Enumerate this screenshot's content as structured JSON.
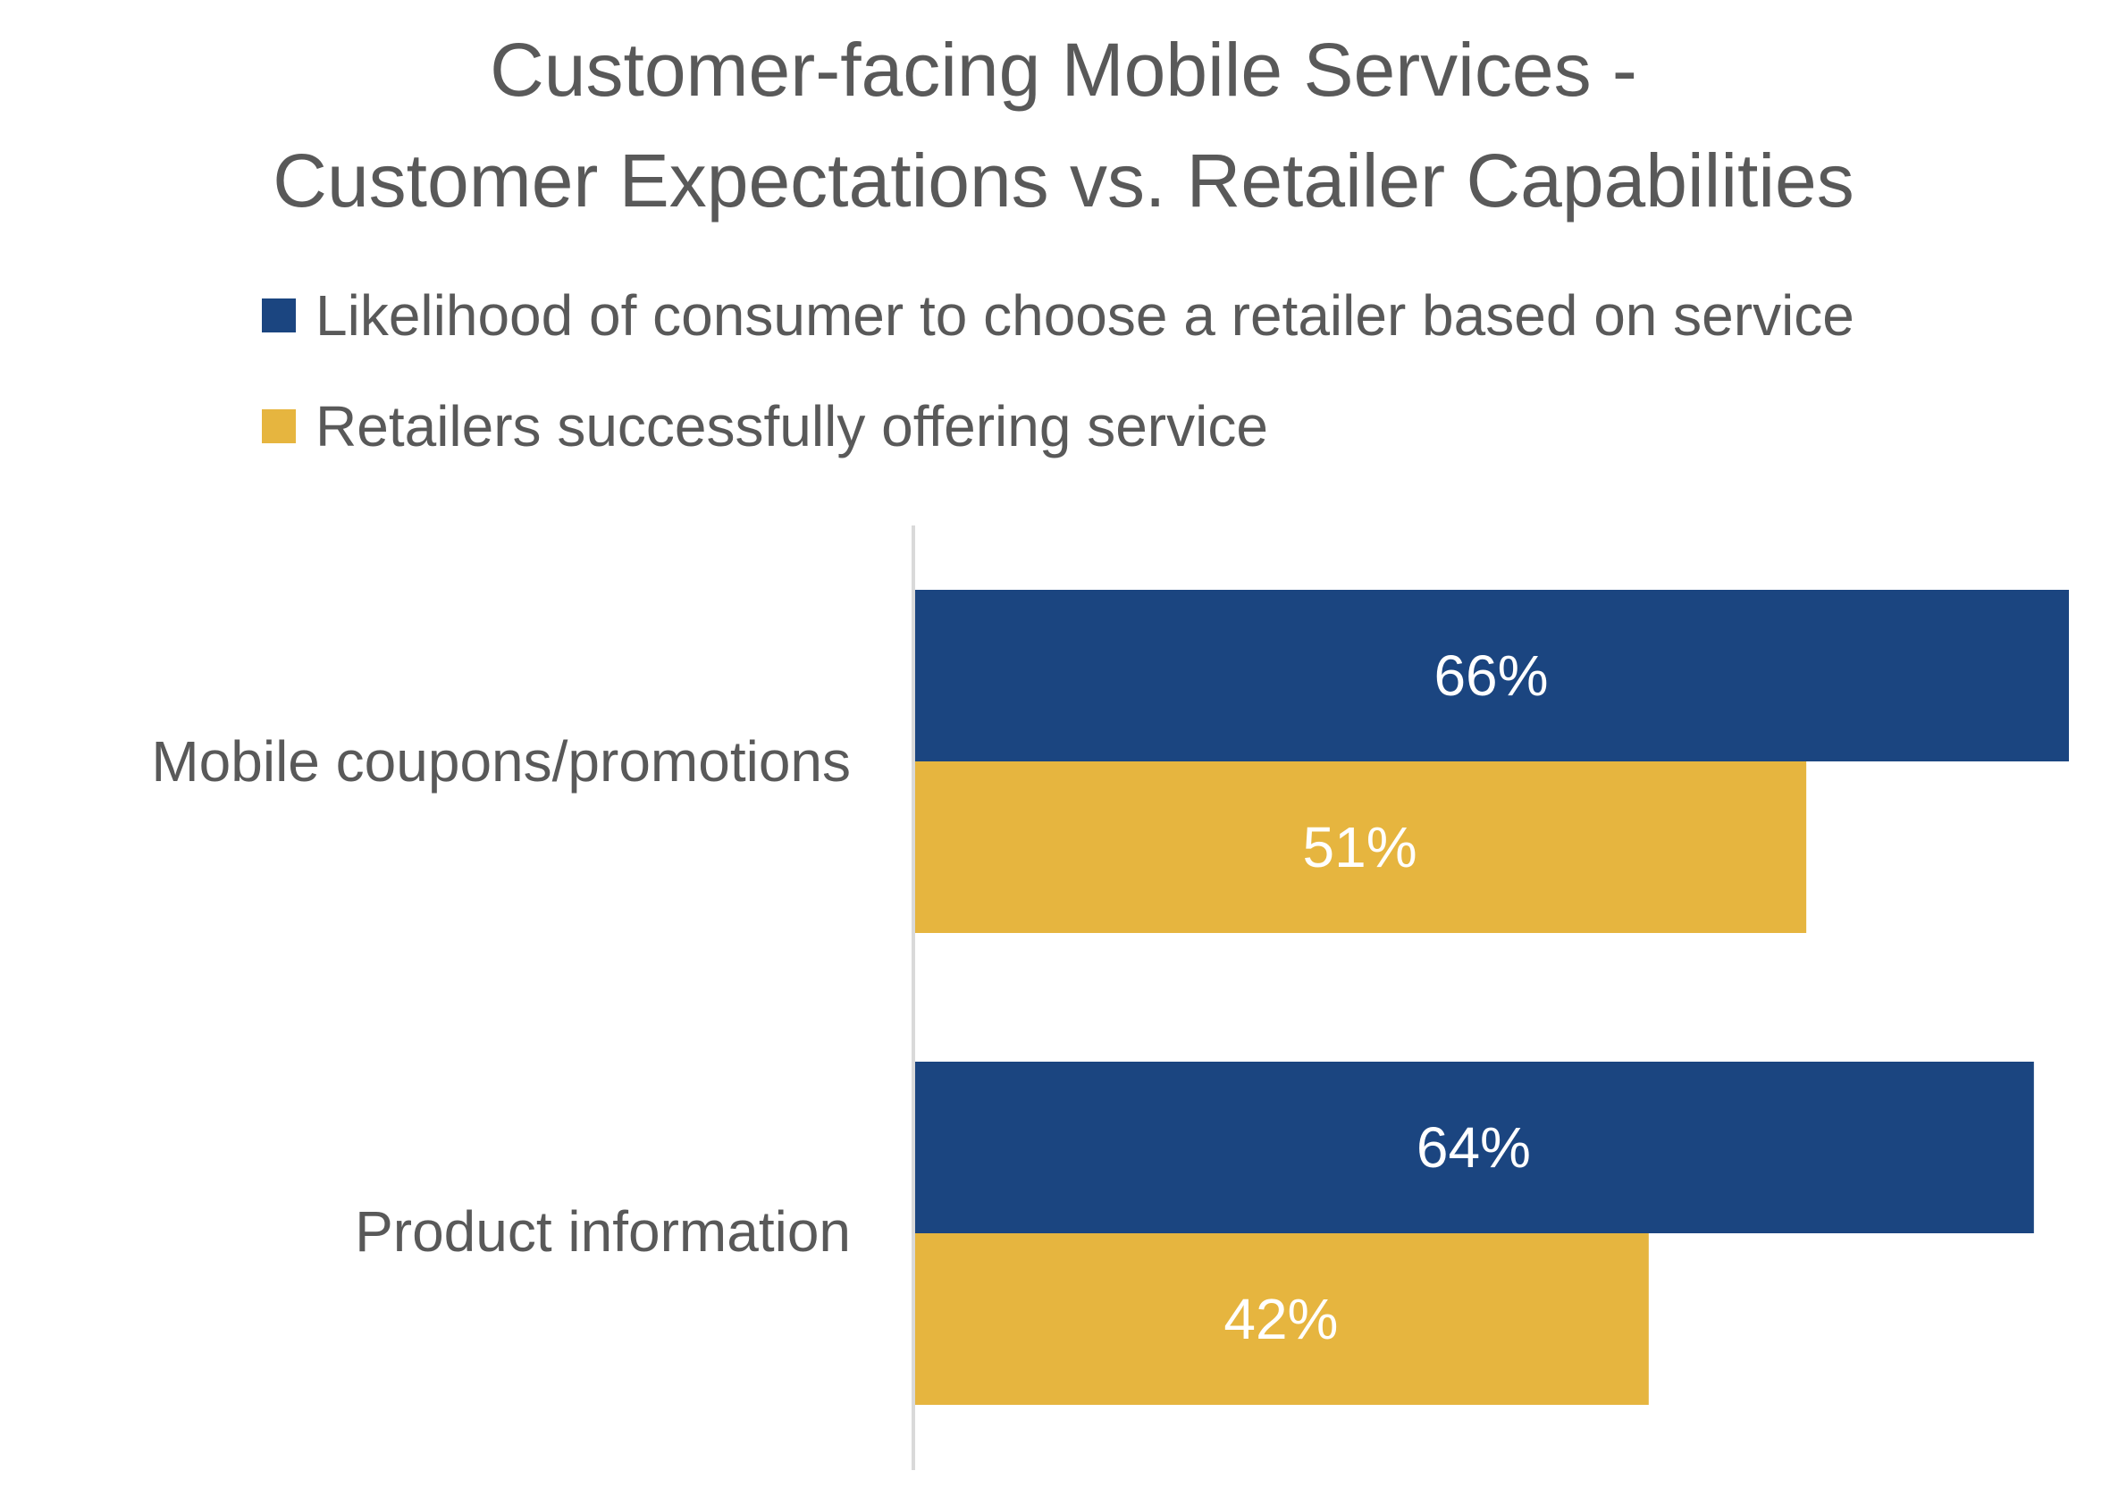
{
  "chart_data": {
    "type": "bar",
    "orientation": "horizontal",
    "title_lines": [
      "Customer-facing Mobile Services -",
      "Customer Expectations vs. Retailer Capabilities"
    ],
    "categories": [
      "Mobile coupons/promotions",
      "Product information"
    ],
    "series": [
      {
        "name": "Likelihood of consumer to choose a retailer based on service",
        "values": [
          66,
          64
        ],
        "labels": [
          "66%",
          "64%"
        ],
        "color": "#1B4580"
      },
      {
        "name": "Retailers successfully offering service",
        "values": [
          51,
          42
        ],
        "labels": [
          "51%",
          "42%"
        ],
        "color": "#E6B53F"
      }
    ],
    "value_unit": "%",
    "xlim": [
      0,
      66
    ],
    "legend_position": "top-left",
    "grid": false,
    "axis_line_color": "#D9D9D9",
    "label_color": "#FFFFFF"
  }
}
